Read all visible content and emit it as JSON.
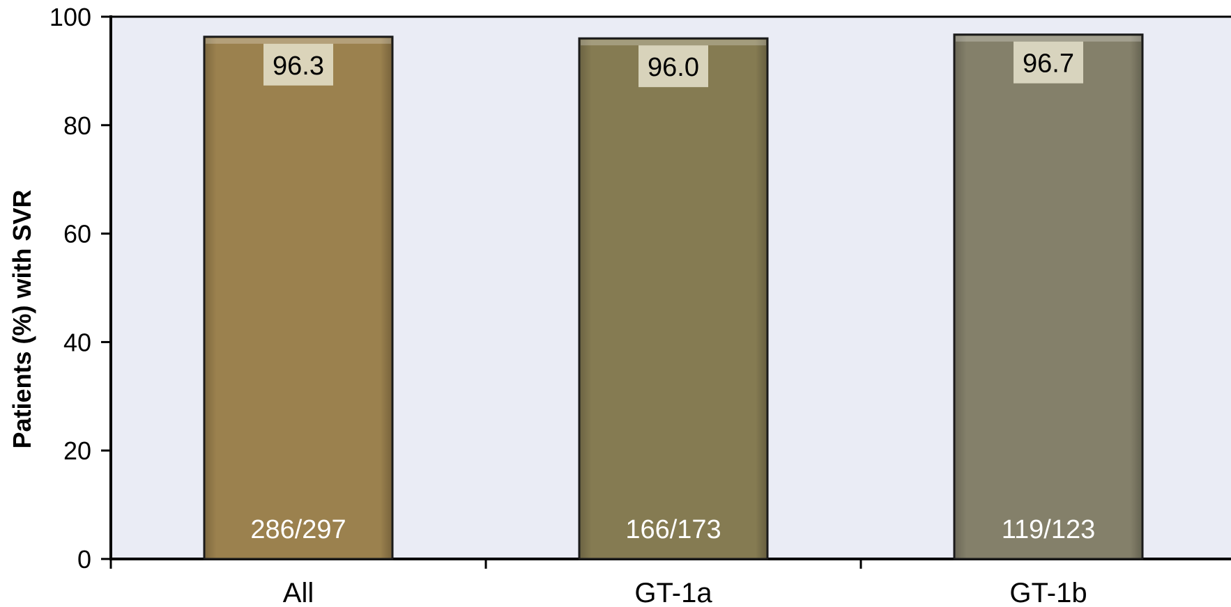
{
  "chart_data": {
    "type": "bar",
    "categories": [
      "All",
      "GT-1a",
      "GT-1b"
    ],
    "values": [
      96.3,
      96.0,
      96.7
    ],
    "value_labels": [
      "96.3",
      "96.0",
      "96.7"
    ],
    "fraction_labels": [
      "286/297",
      "166/173",
      "119/123"
    ],
    "ylabel": "Patients (%) with SVR",
    "xlabel": "",
    "title": "",
    "ylim": [
      0,
      100
    ],
    "yticks": [
      "0",
      "20",
      "40",
      "60",
      "80",
      "100"
    ],
    "bar_colors": [
      "#9B814E",
      "#857B52",
      "#84806A"
    ],
    "plot_background": "#EAECF5",
    "grid": false,
    "legend": "none"
  }
}
